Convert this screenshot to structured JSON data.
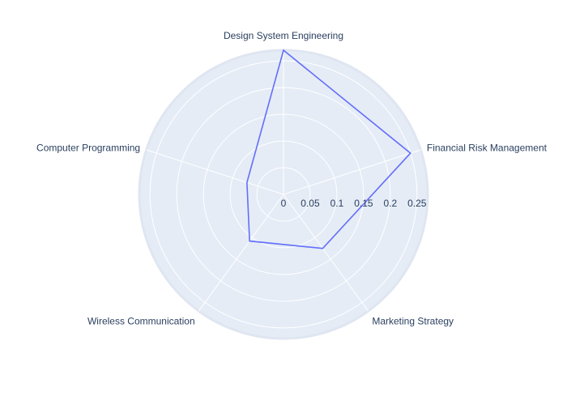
{
  "chart_data": {
    "type": "radar",
    "categories": [
      "Design System Engineering",
      "Financial Risk Management",
      "Marketing Strategy",
      "Wireless Communication",
      "Computer Programming"
    ],
    "series": [
      {
        "values": [
          0.27,
          0.25,
          0.125,
          0.108,
          0.072
        ]
      }
    ],
    "radial_range": [
      0,
      0.27
    ],
    "radial_ticks": [
      0,
      0.05,
      0.1,
      0.15,
      0.2,
      0.25
    ],
    "radial_tick_labels": [
      "0",
      "0.05",
      "0.1",
      "0.15",
      "0.2",
      "0.25"
    ],
    "grid": true,
    "colors": {
      "polar_background": "#e5ecf6",
      "grid": "#ffffff",
      "line": "#636efa",
      "text": "#2a3f5f"
    }
  }
}
